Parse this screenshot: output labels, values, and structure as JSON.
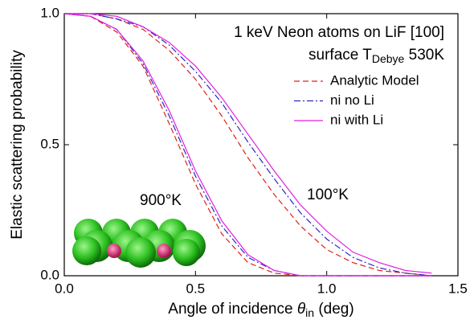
{
  "chart_data": {
    "type": "line",
    "title": "1 keV Neon atoms on LiF [100]",
    "subtitle": {
      "text": "surface T",
      "sub": "Debye",
      "after": " 530K"
    },
    "xlabel": {
      "text": "Angle of incidence ",
      "symbol": "θ",
      "sub": "in",
      "after": " (deg)"
    },
    "ylabel": "Elastic scattering probability",
    "curve_labels": [
      "900°K",
      "100°K"
    ],
    "x": [
      0,
      0.1,
      0.2,
      0.3,
      0.4,
      0.5,
      0.6,
      0.7,
      0.8,
      0.9,
      1.0,
      1.1,
      1.2,
      1.3,
      1.4
    ],
    "series": [
      {
        "name": "Analytic Model",
        "color": "#e0201a",
        "dash": "7,4",
        "curves": [
          {
            "values": [
              1,
              0.99,
              0.93,
              0.8,
              0.58,
              0.35,
              0.16,
              0.05,
              0.01,
              0,
              0,
              0,
              0,
              0,
              0
            ]
          },
          {
            "values": [
              1,
              1,
              0.98,
              0.94,
              0.86,
              0.75,
              0.61,
              0.45,
              0.31,
              0.19,
              0.1,
              0.05,
              0.02,
              0.01,
              0
            ]
          }
        ]
      },
      {
        "name": "ni no Li",
        "color": "#2828c8",
        "dash": "8,3,2,3",
        "curves": [
          {
            "values": [
              1,
              0.99,
              0.94,
              0.81,
              0.61,
              0.38,
              0.19,
              0.07,
              0.02,
              0,
              0,
              0,
              0,
              0,
              0
            ]
          },
          {
            "values": [
              1,
              1,
              0.98,
              0.95,
              0.88,
              0.78,
              0.66,
              0.51,
              0.37,
              0.24,
              0.14,
              0.07,
              0.03,
              0.01,
              0
            ]
          }
        ]
      },
      {
        "name": "ni with Li",
        "color": "#e020e0",
        "dash": "none",
        "curves": [
          {
            "values": [
              1,
              0.99,
              0.94,
              0.82,
              0.63,
              0.4,
              0.21,
              0.08,
              0.02,
              0,
              0,
              0,
              0,
              0,
              0
            ]
          },
          {
            "values": [
              1,
              1,
              0.99,
              0.95,
              0.89,
              0.8,
              0.68,
              0.54,
              0.4,
              0.27,
              0.17,
              0.09,
              0.05,
              0.02,
              0.01
            ]
          }
        ]
      }
    ],
    "xlim": [
      0,
      1.5
    ],
    "xticks": [
      {
        "value": 0,
        "label": "0.0"
      },
      {
        "value": 0.5,
        "label": "0.5"
      },
      {
        "value": 1.0,
        "label": "1.0"
      },
      {
        "value": 1.5,
        "label": "1.5"
      }
    ],
    "ylim": [
      0,
      1
    ],
    "yticks": [
      {
        "value": 0,
        "label": "0.0"
      },
      {
        "value": 0.5,
        "label": "0.5"
      },
      {
        "value": 1.0,
        "label": "1.0"
      }
    ],
    "grid": false
  }
}
